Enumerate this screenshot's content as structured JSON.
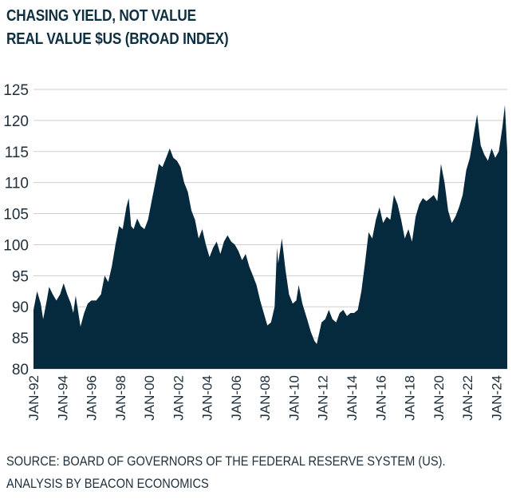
{
  "header": {
    "title": "CHASING YIELD, NOT VALUE",
    "subtitle": "REAL VALUE $US (BROAD INDEX)"
  },
  "footer": {
    "source": "SOURCE: BOARD OF GOVERNORS OF THE FEDERAL RESERVE SYSTEM (US).",
    "analysis": "ANALYSIS BY BEACON ECONOMICS"
  },
  "colors": {
    "area_fill": "#052a3d",
    "gridline": "#cfcfcf",
    "text": "#1f2f3b"
  },
  "chart_data": {
    "type": "area",
    "title": "CHASING YIELD, NOT VALUE",
    "subtitle": "REAL VALUE $US (BROAD INDEX)",
    "xlabel": "",
    "ylabel": "",
    "ylim": [
      80,
      125
    ],
    "yticks": [
      80,
      85,
      90,
      95,
      100,
      105,
      110,
      115,
      120,
      125
    ],
    "xticks": [
      "JAN-92",
      "JAN-94",
      "JAN-96",
      "JAN-98",
      "JAN-00",
      "JAN-02",
      "JAN-04",
      "JAN-06",
      "JAN-08",
      "JAN-10",
      "JAN-12",
      "JAN-14",
      "JAN-16",
      "JAN-18",
      "JAN-20",
      "JAN-22",
      "JAN-24"
    ],
    "xrange": [
      "1992-01",
      "2024-10"
    ],
    "grid": true,
    "legend": "none",
    "series": [
      {
        "points": [
          [
            "1992-01",
            89.5
          ],
          [
            "1992-04",
            92.5
          ],
          [
            "1992-07",
            90.5
          ],
          [
            "1992-09",
            88.0
          ],
          [
            "1992-12",
            91.0
          ],
          [
            "1993-02",
            93.2
          ],
          [
            "1993-05",
            92.0
          ],
          [
            "1993-08",
            91.0
          ],
          [
            "1993-11",
            92.0
          ],
          [
            "1994-02",
            93.8
          ],
          [
            "1994-05",
            92.0
          ],
          [
            "1994-08",
            90.5
          ],
          [
            "1994-10",
            89.0
          ],
          [
            "1994-12",
            91.8
          ],
          [
            "1995-04",
            86.8
          ],
          [
            "1995-07",
            89.0
          ],
          [
            "1995-10",
            90.5
          ],
          [
            "1996-01",
            91.0
          ],
          [
            "1996-05",
            91.0
          ],
          [
            "1996-09",
            92.0
          ],
          [
            "1996-12",
            95.0
          ],
          [
            "1997-03",
            94.0
          ],
          [
            "1997-06",
            96.5
          ],
          [
            "1997-09",
            100.0
          ],
          [
            "1997-12",
            103.0
          ],
          [
            "1998-03",
            102.5
          ],
          [
            "1998-06",
            106.0
          ],
          [
            "1998-08",
            107.5
          ],
          [
            "1998-10",
            103.0
          ],
          [
            "1998-12",
            102.5
          ],
          [
            "1999-03",
            104.2
          ],
          [
            "1999-06",
            103.0
          ],
          [
            "1999-09",
            102.5
          ],
          [
            "1999-12",
            104.0
          ],
          [
            "2000-03",
            107.0
          ],
          [
            "2000-06",
            110.0
          ],
          [
            "2000-09",
            113.0
          ],
          [
            "2000-12",
            112.5
          ],
          [
            "2001-03",
            114.0
          ],
          [
            "2001-06",
            115.5
          ],
          [
            "2001-09",
            114.0
          ],
          [
            "2001-12",
            113.5
          ],
          [
            "2002-03",
            112.5
          ],
          [
            "2002-06",
            110.0
          ],
          [
            "2002-09",
            108.5
          ],
          [
            "2002-12",
            105.5
          ],
          [
            "2003-03",
            104.0
          ],
          [
            "2003-06",
            101.0
          ],
          [
            "2003-09",
            102.5
          ],
          [
            "2003-12",
            100.0
          ],
          [
            "2004-03",
            98.0
          ],
          [
            "2004-06",
            99.5
          ],
          [
            "2004-09",
            100.5
          ],
          [
            "2004-12",
            98.5
          ],
          [
            "2005-03",
            100.5
          ],
          [
            "2005-06",
            101.5
          ],
          [
            "2005-09",
            100.5
          ],
          [
            "2005-12",
            100.0
          ],
          [
            "2006-03",
            99.0
          ],
          [
            "2006-06",
            97.5
          ],
          [
            "2006-09",
            98.5
          ],
          [
            "2006-12",
            96.5
          ],
          [
            "2007-03",
            95.0
          ],
          [
            "2007-06",
            93.5
          ],
          [
            "2007-09",
            91.0
          ],
          [
            "2007-12",
            89.0
          ],
          [
            "2008-03",
            87.0
          ],
          [
            "2008-06",
            87.5
          ],
          [
            "2008-09",
            90.0
          ],
          [
            "2008-11",
            99.5
          ],
          [
            "2008-12",
            97.0
          ],
          [
            "2009-03",
            101.0
          ],
          [
            "2009-06",
            96.0
          ],
          [
            "2009-09",
            92.0
          ],
          [
            "2009-12",
            90.5
          ],
          [
            "2010-03",
            91.0
          ],
          [
            "2010-05",
            93.5
          ],
          [
            "2010-08",
            90.5
          ],
          [
            "2010-12",
            88.0
          ],
          [
            "2011-03",
            86.0
          ],
          [
            "2011-06",
            84.5
          ],
          [
            "2011-08",
            84.0
          ],
          [
            "2011-12",
            87.5
          ],
          [
            "2012-03",
            88.0
          ],
          [
            "2012-06",
            89.5
          ],
          [
            "2012-09",
            88.0
          ],
          [
            "2012-12",
            87.5
          ],
          [
            "2013-03",
            89.0
          ],
          [
            "2013-06",
            89.5
          ],
          [
            "2013-09",
            88.5
          ],
          [
            "2013-12",
            89.0
          ],
          [
            "2014-03",
            89.0
          ],
          [
            "2014-06",
            89.5
          ],
          [
            "2014-09",
            92.5
          ],
          [
            "2014-12",
            97.0
          ],
          [
            "2015-03",
            102.0
          ],
          [
            "2015-06",
            101.0
          ],
          [
            "2015-09",
            104.0
          ],
          [
            "2015-12",
            106.0
          ],
          [
            "2016-03",
            103.5
          ],
          [
            "2016-06",
            104.5
          ],
          [
            "2016-09",
            104.0
          ],
          [
            "2016-12",
            108.0
          ],
          [
            "2017-03",
            106.5
          ],
          [
            "2017-06",
            104.0
          ],
          [
            "2017-09",
            101.0
          ],
          [
            "2017-12",
            102.5
          ],
          [
            "2018-03",
            100.5
          ],
          [
            "2018-06",
            104.5
          ],
          [
            "2018-09",
            106.5
          ],
          [
            "2018-12",
            107.5
          ],
          [
            "2019-03",
            107.0
          ],
          [
            "2019-06",
            107.5
          ],
          [
            "2019-09",
            108.0
          ],
          [
            "2019-12",
            107.0
          ],
          [
            "2020-03",
            113.0
          ],
          [
            "2020-06",
            110.0
          ],
          [
            "2020-09",
            105.5
          ],
          [
            "2020-12",
            103.5
          ],
          [
            "2021-03",
            104.5
          ],
          [
            "2021-06",
            106.0
          ],
          [
            "2021-09",
            108.0
          ],
          [
            "2021-12",
            112.0
          ],
          [
            "2022-03",
            114.0
          ],
          [
            "2022-06",
            117.5
          ],
          [
            "2022-09",
            121.0
          ],
          [
            "2022-12",
            116.0
          ],
          [
            "2023-03",
            114.5
          ],
          [
            "2023-06",
            113.5
          ],
          [
            "2023-09",
            115.5
          ],
          [
            "2023-12",
            114.0
          ],
          [
            "2024-03",
            115.0
          ],
          [
            "2024-06",
            119.0
          ],
          [
            "2024-08",
            122.5
          ],
          [
            "2024-10",
            115.0
          ]
        ]
      }
    ]
  }
}
